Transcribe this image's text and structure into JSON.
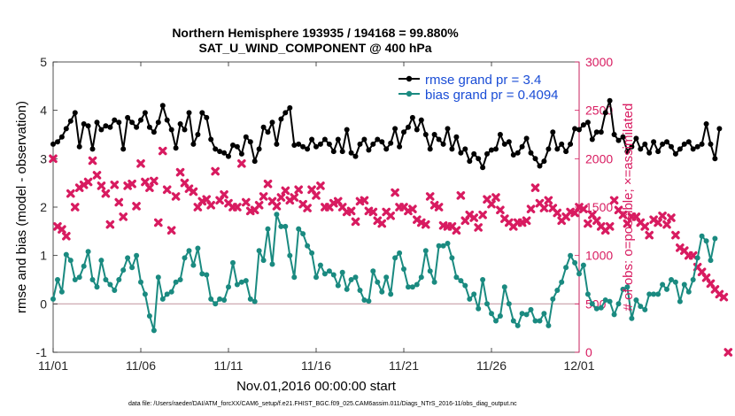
{
  "chart_data": {
    "type": "line",
    "title": "Northern Hemisphere 193935 / 194168 = 99.880%",
    "subtitle": "SAT_U_WIND_COMPONENT @ 400 hPa",
    "xlabel": "Nov.01,2016 00:00:00 start",
    "ylabel": "rmse and bias (model - observation)",
    "y2label": "# of obs: o=possible; ×=assimilated",
    "xlim": [
      0,
      30
    ],
    "ylim": [
      -1,
      5
    ],
    "y2lim": [
      0,
      3000
    ],
    "x_ticks": [
      0,
      5,
      10,
      15,
      20,
      25,
      30
    ],
    "x_tick_labels": [
      "11/01",
      "11/06",
      "11/11",
      "11/16",
      "11/21",
      "11/26",
      "12/01"
    ],
    "y_ticks": [
      -1,
      0,
      1,
      2,
      3,
      4,
      5
    ],
    "y_tick_labels": [
      "-1",
      "0",
      "1",
      "2",
      "3",
      "4",
      "5"
    ],
    "y2_ticks": [
      0,
      500,
      1000,
      1500,
      2000,
      2500,
      3000
    ],
    "y2_tick_labels": [
      "0",
      "500",
      "1000",
      "1500",
      "2000",
      "2500",
      "3000"
    ],
    "legend_position": "top-right",
    "footnote": "data file: /Users/raeder/DAI/ATM_forcXX/CAM6_setup/f.e21.FHIST_BGC.f09_025.CAM6assim.011/Diags_NTrS_2016-11/obs_diag_output.nc",
    "zero_line": 0,
    "series": [
      {
        "name": "rmse grand pr = 3.4",
        "axis": "left",
        "color": "#000000",
        "marker": "circle",
        "x_step": 0.25,
        "values": [
          3.3,
          3.35,
          3.45,
          3.62,
          3.78,
          3.95,
          3.25,
          3.72,
          3.68,
          3.2,
          3.75,
          3.6,
          3.68,
          3.65,
          3.8,
          3.75,
          3.2,
          3.85,
          3.75,
          3.65,
          3.8,
          3.95,
          3.65,
          3.55,
          3.75,
          4.1,
          3.8,
          3.6,
          3.22,
          3.72,
          3.6,
          3.95,
          3.3,
          3.5,
          3.95,
          3.85,
          3.4,
          3.2,
          3.15,
          3.12,
          3.05,
          3.28,
          3.25,
          3.1,
          3.45,
          3.35,
          2.95,
          3.2,
          3.65,
          3.55,
          3.75,
          3.3,
          3.82,
          3.95,
          4.05,
          3.28,
          3.3,
          3.25,
          3.2,
          3.4,
          3.25,
          3.3,
          3.4,
          3.3,
          3.15,
          3.4,
          3.15,
          3.6,
          3.12,
          3.05,
          3.3,
          3.4,
          3.18,
          3.3,
          3.4,
          3.35,
          3.2,
          3.32,
          3.62,
          3.25,
          3.55,
          3.65,
          3.85,
          3.6,
          3.8,
          3.5,
          3.2,
          3.5,
          3.4,
          3.3,
          3.62,
          3.2,
          3.45,
          3.12,
          3.2,
          2.95,
          3.1,
          3.0,
          2.82,
          3.1,
          3.18,
          3.2,
          3.5,
          3.3,
          3.35,
          3.08,
          3.12,
          3.25,
          3.42,
          3.12,
          3.0,
          2.85,
          2.95,
          3.2,
          3.55,
          3.2,
          3.3,
          3.15,
          3.3,
          3.62,
          3.6,
          3.7,
          3.75,
          3.4,
          3.55,
          3.55,
          3.95,
          4.2,
          3.5,
          3.38,
          3.45,
          3.15,
          3.25,
          3.42,
          3.2,
          3.3,
          3.12,
          3.35,
          3.15,
          3.3,
          3.35,
          3.25,
          3.1,
          3.2,
          3.3,
          3.35,
          3.2,
          3.25,
          3.3,
          3.72,
          3.3,
          3.0,
          3.62
        ]
      },
      {
        "name": "bias grand pr = 0.4094",
        "axis": "left",
        "color": "#1a8a80",
        "marker": "circle",
        "x_step": 0.25,
        "values": [
          0.1,
          0.5,
          0.25,
          1.02,
          0.9,
          0.5,
          0.55,
          0.78,
          1.08,
          0.5,
          0.35,
          0.9,
          0.5,
          0.4,
          0.28,
          0.5,
          0.7,
          0.95,
          0.75,
          1.0,
          0.45,
          0.2,
          -0.25,
          -0.55,
          0.55,
          0.1,
          0.2,
          0.25,
          0.45,
          0.5,
          0.95,
          1.1,
          0.8,
          1.15,
          0.62,
          0.6,
          0.1,
          0.0,
          0.1,
          0.08,
          0.35,
          0.85,
          0.4,
          0.45,
          0.48,
          0.1,
          0.05,
          1.1,
          0.9,
          1.55,
          0.82,
          1.85,
          1.6,
          1.6,
          1.0,
          0.55,
          1.55,
          1.45,
          1.2,
          1.05,
          0.55,
          0.8,
          0.62,
          0.68,
          0.6,
          0.38,
          0.65,
          0.3,
          0.5,
          0.55,
          0.28,
          0.08,
          0.06,
          0.68,
          0.45,
          0.25,
          0.55,
          0.2,
          0.95,
          1.05,
          0.72,
          0.35,
          0.35,
          0.4,
          0.55,
          1.1,
          0.68,
          0.45,
          1.2,
          1.2,
          1.25,
          0.95,
          0.55,
          0.48,
          0.38,
          0.1,
          0.2,
          -0.1,
          0.5,
          0.0,
          -0.2,
          -0.35,
          -0.25,
          0.35,
          0.0,
          -0.35,
          -0.45,
          -0.2,
          -0.22,
          -0.12,
          -0.35,
          -0.35,
          -0.2,
          -0.45,
          0.1,
          0.28,
          0.45,
          0.75,
          1.0,
          0.85,
          0.62,
          0.8,
          0.2,
          0.0,
          -0.1,
          -0.08,
          0.08,
          0.05,
          -0.22,
          0.0,
          0.3,
          0.35,
          -0.3,
          0.08,
          -0.05,
          -0.12,
          0.2,
          0.2,
          0.2,
          0.4,
          0.3,
          0.5,
          0.45,
          0.05,
          0.4,
          0.25,
          0.5,
          0.95,
          1.4,
          1.3,
          0.9,
          1.35
        ]
      },
      {
        "name": "obs assimilated",
        "axis": "right",
        "color": "#d81b60",
        "marker": "x",
        "x_step": 0.25,
        "values": [
          2000,
          1300,
          1270,
          1200,
          1640,
          1500,
          1700,
          1730,
          1760,
          1980,
          1830,
          1720,
          1640,
          1320,
          1730,
          1550,
          1400,
          1720,
          1740,
          1510,
          1950,
          1760,
          1700,
          1770,
          1340,
          2080,
          1680,
          1260,
          1610,
          1860,
          1750,
          1690,
          1660,
          1500,
          1560,
          1580,
          1520,
          1870,
          1570,
          1630,
          1540,
          1500,
          1500,
          1950,
          1550,
          1460,
          1470,
          1520,
          1610,
          1740,
          1560,
          1510,
          1600,
          1670,
          1570,
          1600,
          1680,
          1530,
          1490,
          1680,
          1620,
          1720,
          1500,
          1500,
          1540,
          1560,
          1500,
          1450,
          1460,
          1350,
          1560,
          1570,
          1460,
          1450,
          1360,
          1330,
          1450,
          1410,
          1650,
          1500,
          1500,
          1460,
          1480,
          1370,
          1340,
          1320,
          1610,
          1520,
          1500,
          1310,
          1300,
          1300,
          1260,
          1620,
          1360,
          1420,
          1390,
          1290,
          1420,
          1580,
          1530,
          1600,
          1470,
          1380,
          1340,
          1300,
          1340,
          1340,
          1360,
          1480,
          1700,
          1540,
          1490,
          1570,
          1490,
          1440,
          1360,
          1400,
          1450,
          1440,
          1500,
          1480,
          1330,
          1420,
          1360,
          1300,
          1260,
          1300,
          1570,
          1470,
          1420,
          1330,
          1400,
          1400,
          1340,
          1300,
          1210,
          1370,
          1340,
          1410,
          1320,
          1390,
          1210,
          1080,
          1050,
          1000,
          1000,
          880,
          830,
          770,
          710,
          650,
          600,
          570,
          0
        ]
      }
    ]
  }
}
